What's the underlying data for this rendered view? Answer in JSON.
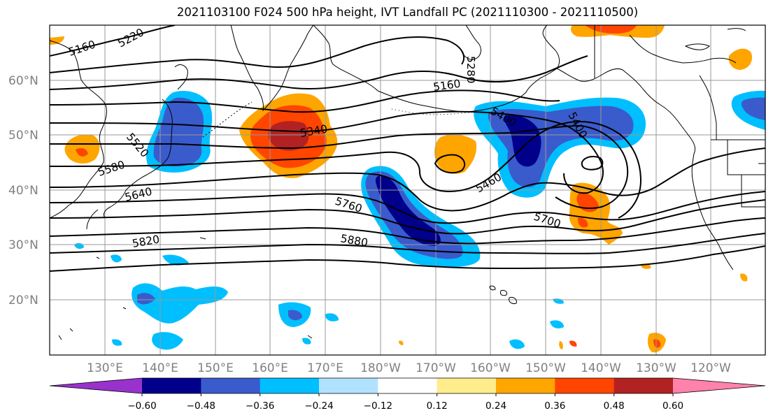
{
  "title": "2021103100 F024 500 hPa height, IVT Landfall PC (2021110300 - 2021110500)",
  "lat_labels": [
    "60°N",
    "50°N",
    "40°N",
    "30°N",
    "20°N"
  ],
  "lon_labels": [
    "130°E",
    "140°E",
    "150°E",
    "160°E",
    "170°E",
    "180°W",
    "170°W",
    "160°W",
    "150°W",
    "140°W",
    "130°W",
    "120°W"
  ],
  "height_contour_labels": [
    "5160",
    "5220",
    "5520",
    "5580",
    "5640",
    "5820",
    "5340",
    "5760",
    "5880",
    "5160",
    "5280",
    "5400",
    "5460",
    "5700",
    "5400"
  ],
  "colorbar": {
    "ticks": [
      "−0.60",
      "−0.48",
      "−0.36",
      "−0.24",
      "−0.12",
      "0.12",
      "0.24",
      "0.36",
      "0.48",
      "0.60"
    ],
    "colors": [
      "#9932cc",
      "#00008b",
      "#3a5bcc",
      "#00bfff",
      "#b0e2ff",
      "#ffffff",
      "#ffec8b",
      "#ffa500",
      "#ff4500",
      "#b22222",
      "#ff82ab"
    ]
  },
  "colors": {
    "contour": "#000000",
    "coast": "#000000",
    "grid": "#999999"
  }
}
